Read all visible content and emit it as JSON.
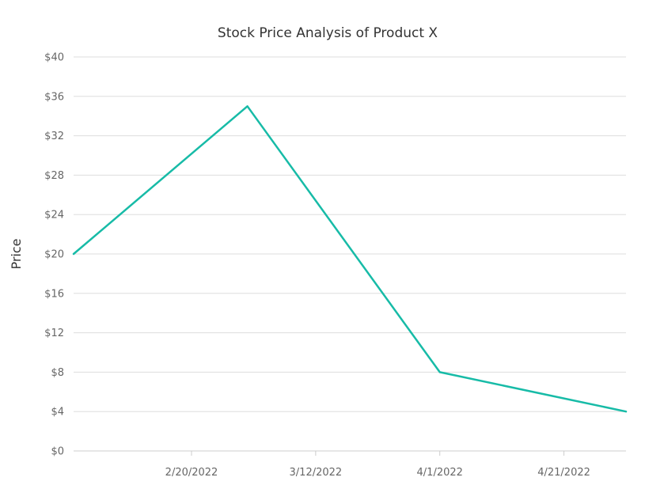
{
  "chart_data": {
    "type": "line",
    "title": "Stock Price Analysis of Product X",
    "xlabel": "",
    "ylabel": "Price",
    "x_dates": [
      "2022-02-01",
      "2022-03-01",
      "2022-04-01",
      "2022-05-01"
    ],
    "x_tick_dates": [
      "2022-02-20",
      "2022-03-12",
      "2022-04-01",
      "2022-04-21"
    ],
    "x_tick_labels": [
      "2/20/2022",
      "3/12/2022",
      "4/1/2022",
      "4/21/2022"
    ],
    "series": [
      {
        "values": [
          20,
          35,
          8,
          4
        ],
        "color": "#17bba7"
      }
    ],
    "ylim": [
      0,
      40
    ],
    "y_ticks": [
      0,
      4,
      8,
      12,
      16,
      20,
      24,
      28,
      32,
      36,
      40
    ],
    "y_tick_labels": [
      "$0",
      "$4",
      "$8",
      "$12",
      "$16",
      "$20",
      "$24",
      "$28",
      "$32",
      "$36",
      "$40"
    ],
    "grid": true,
    "legend": "none"
  }
}
